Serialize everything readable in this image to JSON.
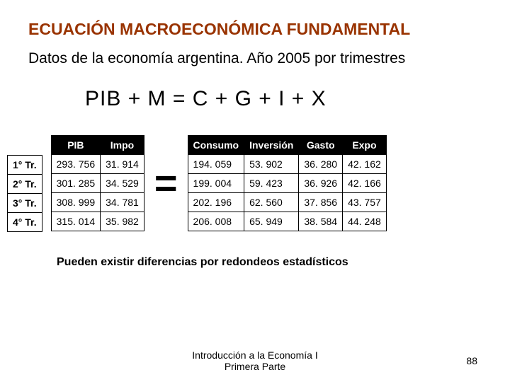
{
  "title": "ECUACIÓN MACROECONÓMICA FUNDAMENTAL",
  "subtitle": "Datos de la economía argentina. Año 2005 por trimestres",
  "equation": "PIB + M  =  C + G + I + X",
  "equals_symbol": "=",
  "row_labels": [
    "1° Tr.",
    "2° Tr.",
    "3° Tr.",
    "4° Tr."
  ],
  "left_table": {
    "headers": [
      "PIB",
      "Impo"
    ],
    "rows": [
      [
        "293. 756",
        "31. 914"
      ],
      [
        "301. 285",
        "34. 529"
      ],
      [
        "308. 999",
        "34. 781"
      ],
      [
        "315. 014",
        "35. 982"
      ]
    ]
  },
  "right_table": {
    "headers": [
      "Consumo",
      "Inversión",
      "Gasto",
      "Expo"
    ],
    "rows": [
      [
        "194. 059",
        "53. 902",
        "36. 280",
        "42. 162"
      ],
      [
        "199. 004",
        "59. 423",
        "36. 926",
        "42. 166"
      ],
      [
        "202. 196",
        "62. 560",
        "37. 856",
        "43. 757"
      ],
      [
        "206. 008",
        "65. 949",
        "38. 584",
        "44. 248"
      ]
    ]
  },
  "note": "Pueden existir diferencias por redondeos estadísticos",
  "footer_line1": "Introducción a la Economía I",
  "footer_line2": "Primera Parte",
  "page_number": "88",
  "colors": {
    "title_color": "#993300",
    "header_bg": "#000000",
    "header_fg": "#ffffff",
    "border": "#000000",
    "text": "#000000",
    "background": "#ffffff"
  },
  "typography": {
    "title_fontsize": 23,
    "subtitle_fontsize": 21,
    "equation_fontsize": 30,
    "cell_fontsize": 14,
    "note_fontsize": 16,
    "footer_fontsize": 14,
    "equals_fontsize": 56
  }
}
